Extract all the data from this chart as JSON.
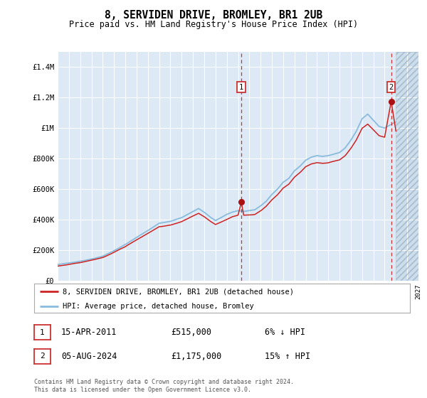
{
  "title": "8, SERVIDEN DRIVE, BROMLEY, BR1 2UB",
  "subtitle": "Price paid vs. HM Land Registry's House Price Index (HPI)",
  "legend_label_red": "8, SERVIDEN DRIVE, BROMLEY, BR1 2UB (detached house)",
  "legend_label_blue": "HPI: Average price, detached house, Bromley",
  "transaction1_date": "15-APR-2011",
  "transaction1_price": "£515,000",
  "transaction1_hpi": "6% ↓ HPI",
  "transaction1_year": 2011.29,
  "transaction1_value": 515000,
  "transaction2_date": "05-AUG-2024",
  "transaction2_price": "£1,175,000",
  "transaction2_hpi": "15% ↑ HPI",
  "transaction2_year": 2024.58,
  "transaction2_value": 1175000,
  "copyright_text": "Contains HM Land Registry data © Crown copyright and database right 2024.\nThis data is licensed under the Open Government Licence v3.0.",
  "ylim": [
    0,
    1500000
  ],
  "xlim_start": 1995.0,
  "xlim_end": 2027.0,
  "fig_bg": "#ffffff",
  "plot_bg_color": "#ddeaf5",
  "grid_color": "#ffffff",
  "red_line_color": "#cc2222",
  "blue_line_color": "#88bbdd",
  "hatch_bg": "#ccdded"
}
